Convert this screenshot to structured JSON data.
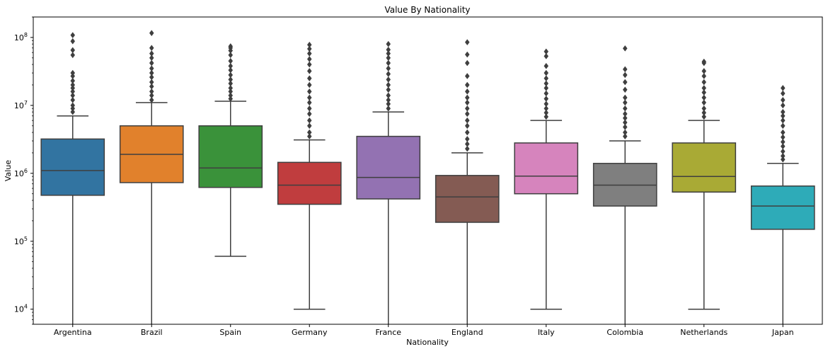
{
  "chart_data": {
    "type": "box",
    "title": "Value By Nationality",
    "xlabel": "Nationality",
    "ylabel": "Value",
    "yscale": "log",
    "ylim": [
      6000,
      200000000
    ],
    "yticks": [
      {
        "value": 10000,
        "base": "10",
        "exp": "4"
      },
      {
        "value": 100000,
        "base": "10",
        "exp": "5"
      },
      {
        "value": 1000000,
        "base": "10",
        "exp": "6"
      },
      {
        "value": 10000000,
        "base": "10",
        "exp": "7"
      },
      {
        "value": 100000000,
        "base": "10",
        "exp": "8"
      }
    ],
    "grid": false,
    "categories": [
      "Argentina",
      "Brazil",
      "Spain",
      "Germany",
      "France",
      "England",
      "Italy",
      "Colombia",
      "Netherlands",
      "Japan"
    ],
    "colors": [
      "#3274a1",
      "#e1812c",
      "#3a923a",
      "#c03d3e",
      "#9372b2",
      "#845b53",
      "#d684bd",
      "#7f7f7f",
      "#a9aa35",
      "#2eabb8"
    ],
    "boxes": [
      {
        "name": "Argentina",
        "min": 6000,
        "q1": 475000,
        "median": 1100000,
        "q3": 3200000,
        "max": 7000000,
        "outliers": [
          8000000,
          9000000,
          10000000,
          12000000,
          14000000,
          16000000,
          18000000,
          20000000,
          23000000,
          27000000,
          30000000,
          55000000,
          65000000,
          88000000,
          108000000
        ]
      },
      {
        "name": "Brazil",
        "min": 6000,
        "q1": 730000,
        "median": 1900000,
        "q3": 5000000,
        "max": 11000000,
        "outliers": [
          12000000,
          14000000,
          16000000,
          19000000,
          22000000,
          26000000,
          30000000,
          35000000,
          42000000,
          50000000,
          58000000,
          70000000,
          116000000
        ]
      },
      {
        "name": "Spain",
        "min": 60000,
        "q1": 620000,
        "median": 1200000,
        "q3": 5000000,
        "max": 11500000,
        "outliers": [
          12500000,
          14000000,
          16000000,
          18000000,
          21000000,
          24000000,
          28000000,
          33000000,
          38000000,
          45000000,
          55000000,
          64000000,
          70000000,
          74000000
        ]
      },
      {
        "name": "Germany",
        "min": 10000,
        "q1": 350000,
        "median": 670000,
        "q3": 1450000,
        "max": 3100000,
        "outliers": [
          3500000,
          4000000,
          5000000,
          6000000,
          7500000,
          9000000,
          11000000,
          13000000,
          16000000,
          20000000,
          25000000,
          32000000,
          40000000,
          48000000,
          58000000,
          68000000,
          78000000
        ]
      },
      {
        "name": "France",
        "min": 6000,
        "q1": 420000,
        "median": 870000,
        "q3": 3500000,
        "max": 8000000,
        "outliers": [
          9000000,
          10500000,
          12000000,
          14000000,
          17000000,
          20000000,
          24000000,
          29000000,
          35000000,
          42000000,
          50000000,
          58000000,
          66000000,
          80000000
        ]
      },
      {
        "name": "England",
        "min": 6000,
        "q1": 190000,
        "median": 450000,
        "q3": 930000,
        "max": 2000000,
        "outliers": [
          2300000,
          2700000,
          3200000,
          4000000,
          5000000,
          6000000,
          7500000,
          9000000,
          11000000,
          13000000,
          16000000,
          20000000,
          27000000,
          42000000,
          56000000,
          85000000
        ]
      },
      {
        "name": "Italy",
        "min": 10000,
        "q1": 500000,
        "median": 910000,
        "q3": 2800000,
        "max": 6000000,
        "outliers": [
          6800000,
          7800000,
          9000000,
          10500000,
          12500000,
          15000000,
          18000000,
          21000000,
          25000000,
          30000000,
          38000000,
          53000000,
          62000000
        ]
      },
      {
        "name": "Colombia",
        "min": 6000,
        "q1": 330000,
        "median": 670000,
        "q3": 1400000,
        "max": 3000000,
        "outliers": [
          3500000,
          4000000,
          4800000,
          5600000,
          6500000,
          7500000,
          9000000,
          11000000,
          13000000,
          17000000,
          22000000,
          28000000,
          34000000,
          69000000
        ]
      },
      {
        "name": "Netherlands",
        "min": 10000,
        "q1": 530000,
        "median": 900000,
        "q3": 2800000,
        "max": 6000000,
        "outliers": [
          6800000,
          7800000,
          9000000,
          11000000,
          13000000,
          15500000,
          18000000,
          22000000,
          27000000,
          32000000,
          42000000,
          44000000
        ]
      },
      {
        "name": "Japan",
        "min": 6000,
        "q1": 150000,
        "median": 330000,
        "q3": 650000,
        "max": 1400000,
        "outliers": [
          1600000,
          1800000,
          2100000,
          2500000,
          2900000,
          3400000,
          4000000,
          5000000,
          6000000,
          7000000,
          8000000,
          10000000,
          12000000,
          15000000,
          18000000
        ]
      }
    ]
  }
}
